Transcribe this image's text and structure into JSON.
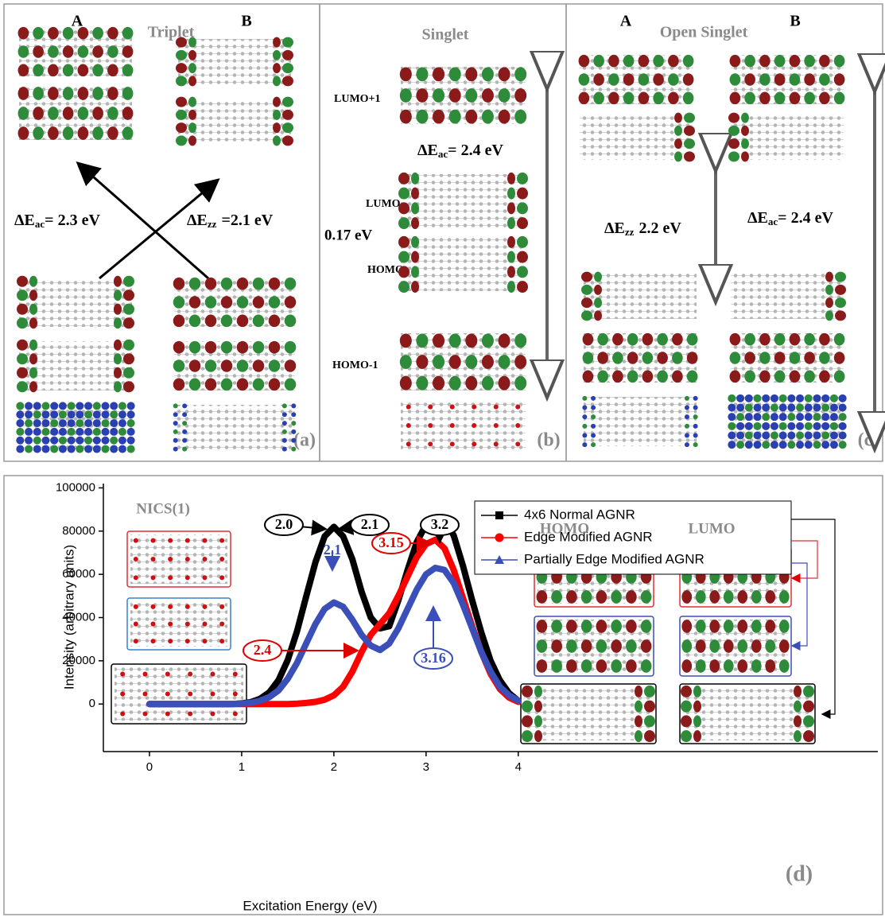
{
  "panel_a": {
    "A": "A",
    "title": "Triplet",
    "B": "B",
    "gap_ac": {
      "main": "ΔE",
      "sub": "ac",
      "rest": "= 2.3 eV"
    },
    "gap_zz": {
      "main": "ΔE",
      "sub": "zz",
      "rest": "=2.1 eV"
    },
    "label": "(a)"
  },
  "panel_b": {
    "title": "Singlet",
    "lumo1": "LUMO+1",
    "gap_ac": {
      "main": "ΔE",
      "sub": "ac",
      "rest": "= 2.4 eV"
    },
    "lumo": "LUMO",
    "gap": "0.17 eV",
    "homo": "HOMO",
    "homo1": "HOMO-1",
    "label": "(b)"
  },
  "panel_c": {
    "A": "A",
    "title": "Open Singlet",
    "B": "B",
    "gap_zz": {
      "main": "ΔE",
      "sub": "zz",
      "rest": "2.2 eV"
    },
    "gap_ac": {
      "main": "ΔE",
      "sub": "ac",
      "rest": "= 2.4 eV"
    },
    "label": "(c)"
  },
  "chart_data": {
    "type": "line",
    "x_label": "Excitation Energy (eV)",
    "y_label": "Intensity  (arbitrary units)",
    "xlim": [
      -0.5,
      7.9
    ],
    "xticks": [
      0,
      1,
      2,
      3,
      4
    ],
    "ylim": [
      -22000,
      102000
    ],
    "yticks": [
      0,
      20000,
      40000,
      60000,
      80000,
      100000
    ],
    "grid": false,
    "legend": "top-right",
    "x": [
      0,
      0.1,
      0.2,
      0.3,
      0.4,
      0.5,
      0.6,
      0.7,
      0.8,
      0.9,
      1.0,
      1.1,
      1.2,
      1.3,
      1.4,
      1.5,
      1.6,
      1.7,
      1.8,
      1.9,
      2.0,
      2.1,
      2.2,
      2.3,
      2.4,
      2.5,
      2.6,
      2.7,
      2.8,
      2.9,
      3.0,
      3.1,
      3.2,
      3.3,
      3.4,
      3.5,
      3.6,
      3.7,
      3.8,
      3.9,
      4.0
    ],
    "series": [
      {
        "name": "4x6 Normal AGNR",
        "color": "#000000",
        "marker": "square",
        "values": [
          0,
          0,
          0,
          0,
          0,
          0,
          0,
          0,
          0,
          0,
          300,
          900,
          2400,
          5400,
          11000,
          20400,
          33600,
          49800,
          65600,
          77600,
          82000,
          77600,
          67000,
          52000,
          40000,
          35000,
          36000,
          48000,
          62000,
          75000,
          83000,
          86000,
          85000,
          78000,
          64000,
          48000,
          33000,
          20000,
          11000,
          5000,
          1500
        ]
      },
      {
        "name": "Edge Modified AGNR",
        "color": "#ff0000",
        "marker": "circle",
        "values": [
          0,
          0,
          0,
          0,
          0,
          0,
          0,
          0,
          0,
          0,
          0,
          0,
          0,
          0,
          0,
          0,
          200,
          500,
          1000,
          2000,
          4000,
          8000,
          15000,
          24000,
          32000,
          37000,
          42000,
          50000,
          59000,
          68000,
          74000,
          76000,
          72000,
          62000,
          49000,
          36000,
          24000,
          14000,
          7000,
          3000,
          1000
        ]
      },
      {
        "name": "Partially Edge Modified AGNR",
        "color": "#3b4fb8",
        "marker": "triangle",
        "values": [
          0,
          0,
          0,
          0,
          0,
          0,
          0,
          0,
          0,
          0,
          200,
          600,
          1500,
          3200,
          6300,
          11700,
          19000,
          28000,
          37000,
          44000,
          47000,
          45000,
          39000,
          32000,
          27000,
          25000,
          28000,
          35000,
          44000,
          53000,
          60000,
          63000,
          62000,
          56000,
          46000,
          35000,
          24000,
          15000,
          8000,
          4000,
          1500
        ]
      }
    ],
    "annotations": [
      "2.0",
      "2.1",
      "3.2",
      "3.15",
      "2.1",
      "2.4",
      "3.16",
      "NICS(1)",
      "HOMO",
      "LUMO",
      "(d)"
    ]
  }
}
